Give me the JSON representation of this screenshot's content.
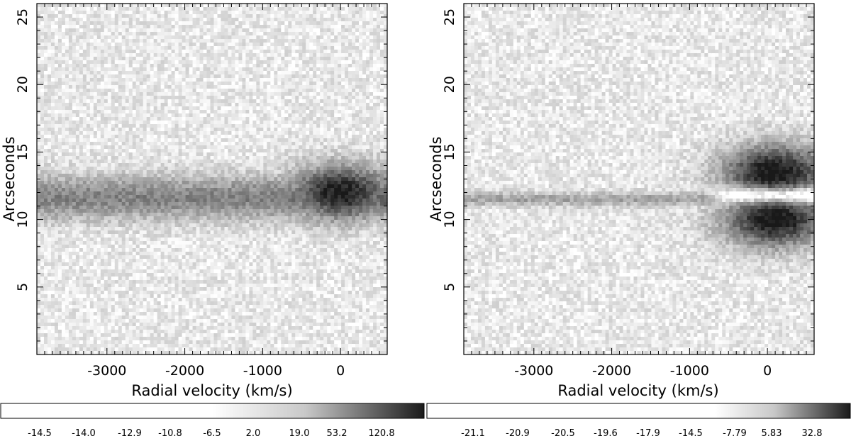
{
  "chart_data": [
    {
      "type": "heatmap",
      "title": "",
      "xlabel": "Radial velocity (km/s)",
      "ylabel": "Arcseconds",
      "xlim": [
        -3900,
        600
      ],
      "ylim": [
        0,
        26
      ],
      "xticks": [
        -3000,
        -2000,
        -1000,
        0
      ],
      "xtick_labels": [
        "-3000",
        "-2000",
        "-1000",
        "0"
      ],
      "yticks": [
        5,
        10,
        15,
        20,
        25
      ],
      "ytick_labels": [
        "5",
        "10",
        "15",
        "20",
        "25"
      ],
      "colormap": "grayscale (white = low, black = high)",
      "colorbar_tick_labels": [
        "-14.5",
        "-14.0",
        "-12.9",
        "-10.8",
        "-6.5",
        "2.0",
        "19.0",
        "53.2",
        "120.8"
      ],
      "features": [
        {
          "kind": "band",
          "center_arcsec": 11.6,
          "x_from": -3900,
          "x_to": 600,
          "strength": 0.8
        },
        {
          "kind": "blob",
          "center_x": 0,
          "center_arcsec": 12,
          "strength": 0.9
        }
      ]
    },
    {
      "type": "heatmap",
      "title": "",
      "xlabel": "Radial velocity (km/s)",
      "ylabel": "Arcseconds",
      "xlim": [
        -3900,
        600
      ],
      "ylim": [
        0,
        26
      ],
      "xticks": [
        -3000,
        -2000,
        -1000,
        0
      ],
      "xtick_labels": [
        "-3000",
        "-2000",
        "-1000",
        "0"
      ],
      "yticks": [
        5,
        10,
        15,
        20,
        25
      ],
      "ytick_labels": [
        "5",
        "10",
        "15",
        "20",
        "25"
      ],
      "colormap": "grayscale (white = low, black = high)",
      "colorbar_tick_labels": [
        "-21.1",
        "-20.9",
        "-20.5",
        "-19.6",
        "-17.9",
        "-14.5",
        "-7.79",
        "5.83",
        "32.8"
      ],
      "features": [
        {
          "kind": "blob",
          "center_x": 100,
          "center_arcsec": 13.5,
          "strength": 0.95
        },
        {
          "kind": "blob",
          "center_x": 100,
          "center_arcsec": 10,
          "strength": 0.95
        },
        {
          "kind": "thin-line",
          "center_arcsec": 11.5,
          "x_from": -3900,
          "x_to": -600,
          "strength": 0.3
        },
        {
          "kind": "bright-gap",
          "center_x": 100,
          "center_arcsec": 11.8
        }
      ]
    }
  ]
}
